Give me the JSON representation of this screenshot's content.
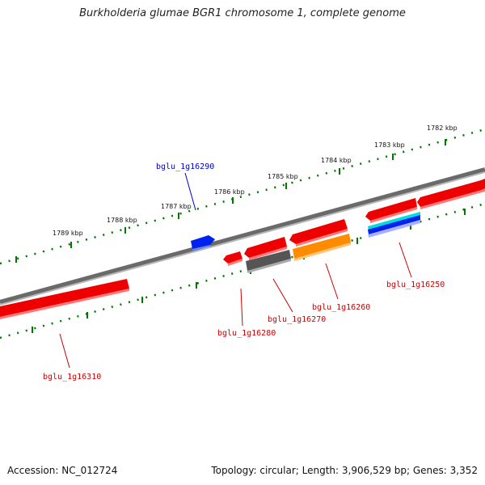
{
  "title": "Burkholderia glumae BGR1 chromosome 1, complete genome",
  "footer": {
    "accession": "Accession: NC_012724",
    "topology": "Topology: circular; Length: 3,906,529 bp; Genes: 3,352"
  },
  "scale_labels": [
    "1782 kbp",
    "1783 kbp",
    "1784 kbp",
    "1785 kbp",
    "1786 kbp",
    "1787 kbp",
    "1788 kbp",
    "1789 kbp"
  ],
  "gene_labels": {
    "g16290": "bglu_1g16290",
    "g16250": "bglu_1g16250",
    "g16260": "bglu_1g16260",
    "g16270": "bglu_1g16270",
    "g16280": "bglu_1g16280",
    "g16310": "bglu_1g16310"
  },
  "colors": {
    "forward_label": "#0000cc",
    "reverse_label": "#cc0000",
    "gene_red": "#ee0000",
    "gene_blue": "#0022ee",
    "gene_orange": "#ff8c00",
    "gene_gray": "#555555",
    "gene_cyan": "#00cccc",
    "tick_green": "#007700",
    "backbone": "#808080"
  }
}
